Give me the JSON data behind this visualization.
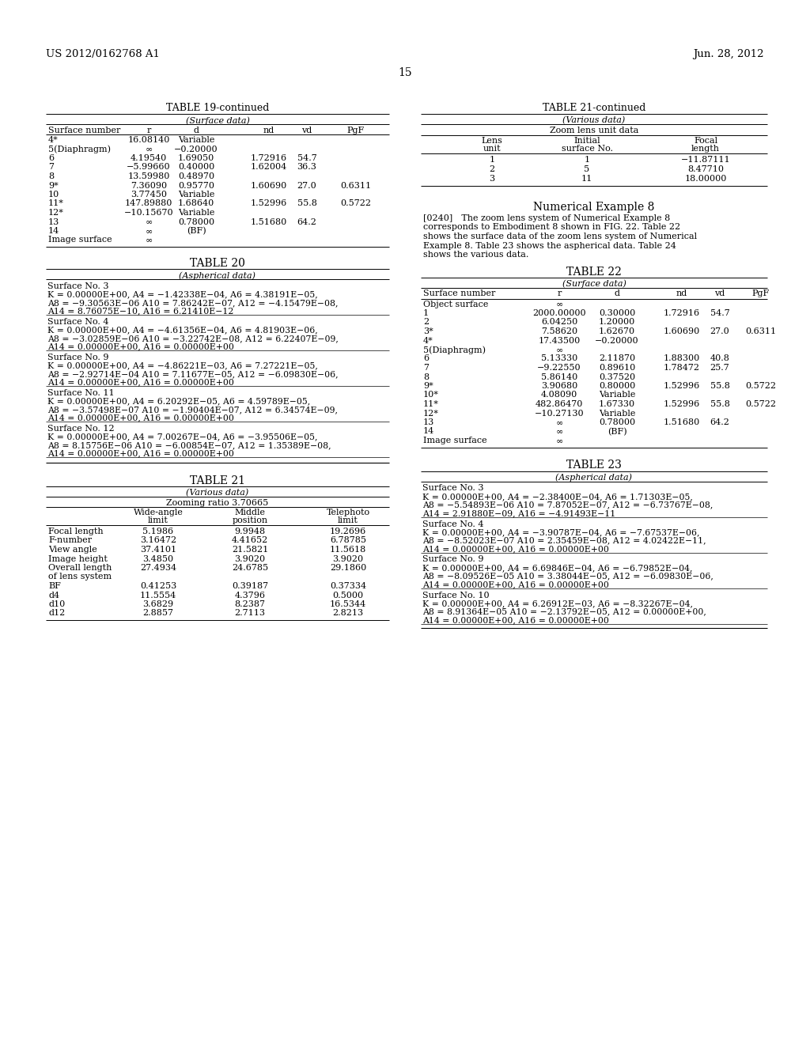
{
  "header_left": "US 2012/0162768 A1",
  "header_right": "Jun. 28, 2012",
  "page_number": "15",
  "background_color": "#ffffff",
  "text_color": "#000000",
  "table19_title": "TABLE 19-continued",
  "table19_subtitle": "(Surface data)",
  "table19_rows": [
    [
      "4*",
      "16.08140",
      "Variable",
      "",
      "",
      ""
    ],
    [
      "5(Diaphragm)",
      "∞",
      "−0.20000",
      "",
      "",
      ""
    ],
    [
      "6",
      "4.19540",
      "1.69050",
      "1.72916",
      "54.7",
      ""
    ],
    [
      "7",
      "−5.99660",
      "0.40000",
      "1.62004",
      "36.3",
      ""
    ],
    [
      "8",
      "13.59980",
      "0.48970",
      "",
      "",
      ""
    ],
    [
      "9*",
      "7.36090",
      "0.95770",
      "1.60690",
      "27.0",
      "0.6311"
    ],
    [
      "10",
      "3.77450",
      "Variable",
      "",
      "",
      ""
    ],
    [
      "11*",
      "147.89880",
      "1.68640",
      "1.52996",
      "55.8",
      "0.5722"
    ],
    [
      "12*",
      "−10.15670",
      "Variable",
      "",
      "",
      ""
    ],
    [
      "13",
      "∞",
      "0.78000",
      "1.51680",
      "64.2",
      ""
    ],
    [
      "14",
      "∞",
      "(BF)",
      "",
      "",
      ""
    ],
    [
      "Image surface",
      "∞",
      "",
      "",
      "",
      ""
    ]
  ],
  "table20_title": "TABLE 20",
  "table20_subtitle": "(Aspherical data)",
  "table20_blocks": [
    {
      "header": "Surface No. 3",
      "lines": [
        "K = 0.00000E+00, A4 = −1.42338E−04, A6 = 4.38191E−05,",
        "A8 = −9.30563E−06 A10 = 7.86242E−07, A12 = −4.15479E−08,",
        "A14 = 8.76075E−10, A16 = 6.21410E−12"
      ]
    },
    {
      "header": "Surface No. 4",
      "lines": [
        "K = 0.00000E+00, A4 = −4.61356E−04, A6 = 4.81903E−06,",
        "A8 = −3.02859E−06 A10 = −3.22742E−08, A12 = 6.22407E−09,",
        "A14 = 0.00000E+00, A16 = 0.00000E+00"
      ]
    },
    {
      "header": "Surface No. 9",
      "lines": [
        "K = 0.00000E+00, A4 = −4.86221E−03, A6 = 7.27221E−05,",
        "A8 = −2.92714E−04 A10 = 7.11677E−05, A12 = −6.09830E−06,",
        "A14 = 0.00000E+00, A16 = 0.00000E+00"
      ]
    },
    {
      "header": "Surface No. 11",
      "lines": [
        "K = 0.00000E+00, A4 = 6.20292E−05, A6 = 4.59789E−05,",
        "A8 = −3.57498E−07 A10 = −1.90404E−07, A12 = 6.34574E−09,",
        "A14 = 0.00000E+00, A16 = 0.00000E+00"
      ]
    },
    {
      "header": "Surface No. 12",
      "lines": [
        "K = 0.00000E+00, A4 = 7.00267E−04, A6 = −3.95506E−05,",
        "A8 = 8.15756E−06 A10 = −6.00854E−07, A12 = 1.35389E−08,",
        "A14 = 0.00000E+00, A16 = 0.00000E+00"
      ]
    }
  ],
  "table21_title": "TABLE 21",
  "table21_subtitle": "(Various data)",
  "table21_zoom": "Zooming ratio 3.70665",
  "table21_rows": [
    [
      "Focal length",
      "5.1986",
      "9.9948",
      "19.2696"
    ],
    [
      "F-number",
      "3.16472",
      "4.41652",
      "6.78785"
    ],
    [
      "View angle",
      "37.4101",
      "21.5821",
      "11.5618"
    ],
    [
      "Image height",
      "3.4850",
      "3.9020",
      "3.9020"
    ],
    [
      "Overall length",
      "27.4934",
      "24.6785",
      "29.1860"
    ],
    [
      "of lens system",
      "",
      "",
      ""
    ],
    [
      "BF",
      "0.41253",
      "0.39187",
      "0.37334"
    ],
    [
      "d4",
      "11.5554",
      "4.3796",
      "0.5000"
    ],
    [
      "d10",
      "3.6829",
      "8.2387",
      "16.5344"
    ],
    [
      "d12",
      "2.8857",
      "2.7113",
      "2.8213"
    ]
  ],
  "table21c_title": "TABLE 21-continued",
  "table21c_subtitle": "(Various data)",
  "table21c_zoom": "Zoom lens unit data",
  "table21c_rows": [
    [
      "1",
      "1",
      "−11.87111"
    ],
    [
      "2",
      "5",
      "8.47710"
    ],
    [
      "3",
      "11",
      "18.00000"
    ]
  ],
  "num_example_title": "Numerical Example 8",
  "num_example_para": [
    "[0240] The zoom lens system of Numerical Example 8",
    "corresponds to Embodiment 8 shown in FIG. 22. Table 22",
    "shows the surface data of the zoom lens system of Numerical",
    "Example 8. Table 23 shows the aspherical data. Table 24",
    "shows the various data."
  ],
  "table22_title": "TABLE 22",
  "table22_subtitle": "(Surface data)",
  "table22_rows": [
    [
      "Object surface",
      "∞",
      "",
      "",
      "",
      ""
    ],
    [
      "1",
      "2000.00000",
      "0.30000",
      "1.72916",
      "54.7",
      ""
    ],
    [
      "2",
      "6.04250",
      "1.20000",
      "",
      "",
      ""
    ],
    [
      "3*",
      "7.58620",
      "1.62670",
      "1.60690",
      "27.0",
      "0.6311"
    ],
    [
      "4*",
      "17.43500",
      "−0.20000",
      "",
      "",
      ""
    ],
    [
      "5(Diaphragm)",
      "∞",
      "",
      "",
      "",
      ""
    ],
    [
      "6",
      "5.13330",
      "2.11870",
      "1.88300",
      "40.8",
      ""
    ],
    [
      "7",
      "−9.22550",
      "0.89610",
      "1.78472",
      "25.7",
      ""
    ],
    [
      "8",
      "5.86140",
      "0.37520",
      "",
      "",
      ""
    ],
    [
      "9*",
      "3.90680",
      "0.80000",
      "1.52996",
      "55.8",
      "0.5722"
    ],
    [
      "10*",
      "4.08090",
      "Variable",
      "",
      "",
      ""
    ],
    [
      "11*",
      "482.86470",
      "1.67330",
      "1.52996",
      "55.8",
      "0.5722"
    ],
    [
      "12*",
      "−10.27130",
      "Variable",
      "",
      "",
      ""
    ],
    [
      "13",
      "∞",
      "0.78000",
      "1.51680",
      "64.2",
      ""
    ],
    [
      "14",
      "∞",
      "(BF)",
      "",
      "",
      ""
    ],
    [
      "Image surface",
      "∞",
      "",
      "",
      "",
      ""
    ]
  ],
  "table23_title": "TABLE 23",
  "table23_subtitle": "(Aspherical data)",
  "table23_blocks": [
    {
      "header": "Surface No. 3",
      "lines": [
        "K = 0.00000E+00, A4 = −2.38400E−04, A6 = 1.71303E−05,",
        "A8 = −5.54893E−06 A10 = 7.87052E−07, A12 = −6.73767E−08,",
        "A14 = 2.91880E−09, A16 = −4.91493E−11"
      ]
    },
    {
      "header": "Surface No. 4",
      "lines": [
        "K = 0.00000E+00, A4 = −3.90787E−04, A6 = −7.67537E−06,",
        "A8 = −8.52023E−07 A10 = 2.35459E−08, A12 = 4.02422E−11,",
        "A14 = 0.00000E+00, A16 = 0.00000E+00"
      ]
    },
    {
      "header": "Surface No. 9",
      "lines": [
        "K = 0.00000E+00, A4 = 6.69846E−04, A6 = −6.79852E−04,",
        "A8 = −8.09526E−05 A10 = 3.38044E−05, A12 = −6.09830E−06,",
        "A14 = 0.00000E+00, A16 = 0.00000E+00"
      ]
    },
    {
      "header": "Surface No. 10",
      "lines": [
        "K = 0.00000E+00, A4 = 6.26912E−03, A6 = −8.32267E−04,",
        "A8 = 8.91364E−05 A10 = −2.13792E−05, A12 = 0.00000E+00,",
        "A14 = 0.00000E+00, A16 = 0.00000E+00"
      ]
    }
  ]
}
